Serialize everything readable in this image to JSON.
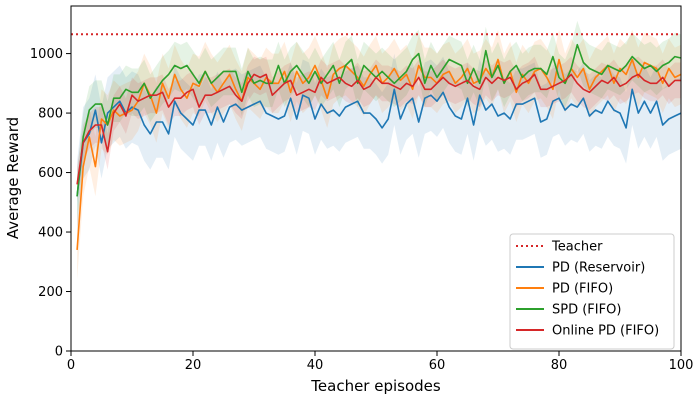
{
  "chart_data": {
    "type": "line",
    "xlabel": "Teacher episodes",
    "ylabel": "Average Reward",
    "xlim": [
      0,
      100
    ],
    "ylim": [
      0,
      1160
    ],
    "xticks": [
      "0",
      "20",
      "40",
      "60",
      "80",
      "100"
    ],
    "yticks": [
      "0",
      "200",
      "400",
      "600",
      "800",
      "1000"
    ],
    "legend_position": "lower-right",
    "shaded_bands": true,
    "teacher": {
      "name": "Teacher",
      "value": 1065,
      "color": "#d62728",
      "style": "dotted"
    },
    "x": [
      1,
      2,
      3,
      4,
      5,
      6,
      7,
      8,
      9,
      10,
      11,
      12,
      13,
      14,
      15,
      16,
      17,
      18,
      19,
      20,
      21,
      22,
      23,
      24,
      25,
      26,
      27,
      28,
      29,
      30,
      31,
      32,
      33,
      34,
      35,
      36,
      37,
      38,
      39,
      40,
      41,
      42,
      43,
      44,
      45,
      46,
      47,
      48,
      49,
      50,
      51,
      52,
      53,
      54,
      55,
      56,
      57,
      58,
      59,
      60,
      61,
      62,
      63,
      64,
      65,
      66,
      67,
      68,
      69,
      70,
      71,
      72,
      73,
      74,
      75,
      76,
      77,
      78,
      79,
      80,
      81,
      82,
      83,
      84,
      85,
      86,
      87,
      88,
      89,
      90,
      91,
      92,
      93,
      94,
      95,
      96,
      97,
      98,
      99,
      100
    ],
    "series": [
      {
        "name": "PD (Reservoir)",
        "color": "#1f77b4",
        "band": 120,
        "values": [
          520,
          700,
          730,
          810,
          700,
          800,
          820,
          840,
          800,
          820,
          810,
          760,
          730,
          770,
          770,
          730,
          840,
          800,
          780,
          760,
          810,
          810,
          760,
          820,
          770,
          820,
          830,
          810,
          820,
          830,
          840,
          800,
          790,
          780,
          790,
          850,
          780,
          860,
          850,
          780,
          830,
          800,
          810,
          790,
          820,
          830,
          840,
          800,
          800,
          780,
          750,
          780,
          880,
          780,
          830,
          850,
          770,
          850,
          860,
          840,
          870,
          820,
          790,
          780,
          850,
          760,
          860,
          810,
          830,
          790,
          800,
          780,
          830,
          830,
          840,
          850,
          770,
          780,
          840,
          850,
          810,
          830,
          820,
          850,
          790,
          810,
          800,
          840,
          810,
          800,
          750,
          880,
          800,
          840,
          800,
          840,
          760,
          780,
          790,
          800
        ]
      },
      {
        "name": "PD (FIFO)",
        "color": "#ff7f0e",
        "band": 100,
        "values": [
          340,
          620,
          720,
          620,
          780,
          760,
          810,
          790,
          800,
          810,
          840,
          900,
          860,
          800,
          900,
          850,
          930,
          880,
          850,
          900,
          890,
          940,
          900,
          870,
          900,
          930,
          880,
          840,
          920,
          900,
          880,
          920,
          900,
          900,
          940,
          870,
          940,
          900,
          920,
          960,
          910,
          850,
          930,
          950,
          960,
          940,
          920,
          890,
          930,
          960,
          900,
          920,
          950,
          910,
          930,
          880,
          960,
          920,
          920,
          900,
          930,
          940,
          900,
          920,
          950,
          900,
          910,
          950,
          920,
          980,
          900,
          940,
          870,
          930,
          900,
          940,
          950,
          920,
          880,
          980,
          900,
          950,
          920,
          950,
          880,
          920,
          940,
          960,
          900,
          950,
          930,
          980,
          920,
          970,
          960,
          950,
          900,
          950,
          920,
          930
        ]
      },
      {
        "name": "SPD (FIFO)",
        "color": "#2ca02c",
        "band": 80,
        "values": [
          520,
          720,
          810,
          830,
          830,
          760,
          850,
          850,
          880,
          870,
          870,
          900,
          850,
          880,
          910,
          930,
          960,
          950,
          960,
          930,
          900,
          940,
          900,
          920,
          940,
          940,
          940,
          870,
          940,
          900,
          910,
          900,
          900,
          960,
          900,
          940,
          960,
          930,
          900,
          940,
          900,
          930,
          960,
          900,
          960,
          980,
          900,
          960,
          940,
          920,
          940,
          920,
          900,
          920,
          940,
          980,
          1000,
          900,
          960,
          920,
          950,
          980,
          970,
          960,
          900,
          950,
          900,
          1010,
          920,
          960,
          900,
          940,
          960,
          920,
          940,
          950,
          950,
          930,
          990,
          920,
          900,
          950,
          1030,
          970,
          950,
          940,
          930,
          960,
          950,
          940,
          960,
          990,
          970,
          950,
          960,
          940,
          960,
          970,
          990,
          985
        ]
      },
      {
        "name": "Online PD (FIFO)",
        "color": "#d62728",
        "band": 60,
        "values": [
          560,
          700,
          740,
          760,
          760,
          670,
          800,
          830,
          790,
          860,
          840,
          850,
          860,
          860,
          870,
          820,
          850,
          850,
          870,
          880,
          820,
          860,
          860,
          870,
          880,
          890,
          860,
          840,
          900,
          930,
          920,
          930,
          860,
          880,
          900,
          910,
          860,
          870,
          880,
          870,
          920,
          900,
          910,
          920,
          900,
          890,
          910,
          880,
          890,
          920,
          900,
          900,
          890,
          880,
          900,
          890,
          920,
          880,
          880,
          900,
          920,
          900,
          890,
          900,
          910,
          890,
          880,
          920,
          900,
          920,
          910,
          920,
          880,
          900,
          910,
          930,
          880,
          880,
          890,
          900,
          910,
          930,
          900,
          880,
          870,
          890,
          910,
          900,
          920,
          890,
          900,
          920,
          930,
          910,
          900,
          900,
          920,
          890,
          910,
          910
        ]
      }
    ]
  }
}
